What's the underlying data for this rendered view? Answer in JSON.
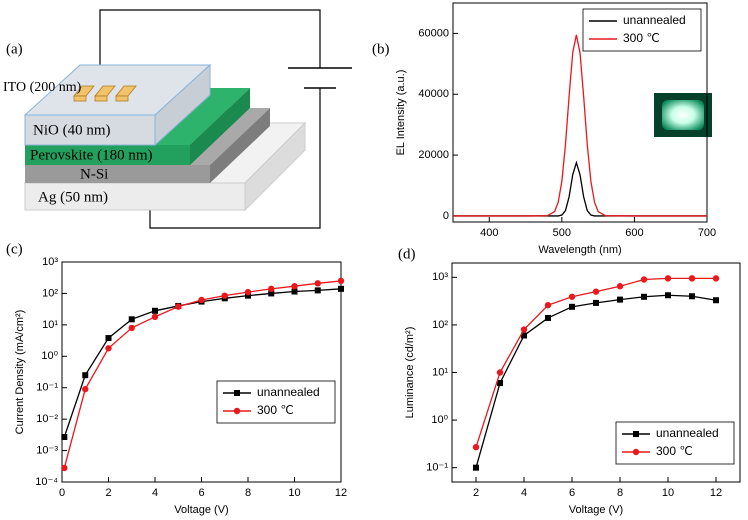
{
  "diagram": {
    "label": "(a)",
    "ito": "ITO (200 nm)",
    "nio": "NiO (40 nm)",
    "perovskite": "Perovskite (180 nm)",
    "nsi": "N-Si",
    "ag": "Ag (50 nm)"
  },
  "chart_data": [
    {
      "type": "line",
      "panel_label": "(b)",
      "x_label": "Wavelength (nm)",
      "y_label": "EL Intensity (a.u.)",
      "x": [
        350,
        400,
        450,
        480,
        490,
        495,
        500,
        505,
        510,
        515,
        520,
        525,
        530,
        535,
        540,
        545,
        550,
        560,
        600,
        650,
        700
      ],
      "series": [
        {
          "name": "unannealed",
          "color": "#000000",
          "values": [
            0,
            0,
            0,
            0,
            0,
            0,
            300,
            1760,
            6300,
            13560,
            17500,
            13560,
            6300,
            1760,
            300,
            0,
            0,
            0,
            0,
            0,
            0
          ]
        },
        {
          "name": "300 ℃",
          "color": "#e8181d",
          "values": [
            0,
            0,
            0,
            80,
            1450,
            4500,
            11400,
            23500,
            39400,
            53700,
            59500,
            53700,
            39400,
            23500,
            11400,
            4500,
            1450,
            80,
            0,
            0,
            0
          ]
        }
      ],
      "xlim": [
        350,
        700
      ],
      "xticks": [
        400,
        500,
        600,
        700
      ],
      "ylim": [
        -2000,
        70000
      ],
      "yticks": [
        0,
        20000,
        40000,
        60000
      ],
      "legend": "upper right"
    },
    {
      "type": "line",
      "panel_label": "(c)",
      "x_label": "Voltage (V)",
      "y_label": "Current Density (mA/cm²)",
      "y_log": true,
      "x": [
        0.1,
        1,
        2,
        3,
        4,
        5,
        6,
        7,
        8,
        9,
        10,
        11,
        12
      ],
      "series": [
        {
          "name": "unannealed",
          "color": "#000000",
          "marker": "square",
          "values": [
            0.0027,
            0.25,
            3.8,
            15,
            28,
            40,
            55,
            70,
            85,
            100,
            115,
            125,
            140
          ]
        },
        {
          "name": "300 ℃",
          "color": "#e8181d",
          "marker": "circle",
          "values": [
            0.00028,
            0.09,
            1.8,
            8,
            18,
            38,
            62,
            85,
            110,
            140,
            170,
            210,
            250
          ]
        }
      ],
      "xlim": [
        0,
        12
      ],
      "xticks": [
        0,
        2,
        4,
        6,
        8,
        10,
        12
      ],
      "ylim": [
        0.0001,
        1000
      ],
      "yticks": [
        {
          "value": 0.0001,
          "label": "10⁻⁴"
        },
        {
          "value": 0.001,
          "label": "10⁻³"
        },
        {
          "value": 0.01,
          "label": "10⁻²"
        },
        {
          "value": 0.1,
          "label": "10⁻¹"
        },
        {
          "value": 1,
          "label": "10⁰"
        },
        {
          "value": 10,
          "label": "10¹"
        },
        {
          "value": 100,
          "label": "10²"
        },
        {
          "value": 1000,
          "label": "10³"
        }
      ],
      "legend": "center right"
    },
    {
      "type": "line",
      "panel_label": "(d)",
      "x_label": "Voltage (V)",
      "y_label": "Luminance (cd/m²)",
      "y_log": true,
      "x": [
        2,
        3,
        4,
        5,
        6,
        7,
        8,
        9,
        10,
        11,
        12
      ],
      "series": [
        {
          "name": "unannealed",
          "color": "#000000",
          "marker": "square",
          "values": [
            0.1,
            6,
            60,
            140,
            240,
            290,
            340,
            390,
            420,
            400,
            330
          ]
        },
        {
          "name": "300 ℃",
          "color": "#e8181d",
          "marker": "circle",
          "values": [
            0.27,
            10,
            80,
            260,
            390,
            500,
            650,
            900,
            950,
            950,
            950
          ]
        }
      ],
      "xlim": [
        1,
        13
      ],
      "xticks": [
        2,
        4,
        6,
        8,
        10,
        12
      ],
      "ylim": [
        0.05,
        2000
      ],
      "yticks": [
        {
          "value": 0.1,
          "label": "10⁻¹"
        },
        {
          "value": 1,
          "label": "10⁰"
        },
        {
          "value": 10,
          "label": "10¹"
        },
        {
          "value": 100,
          "label": "10²"
        },
        {
          "value": 1000,
          "label": "10³"
        }
      ],
      "legend": "lower right"
    }
  ]
}
